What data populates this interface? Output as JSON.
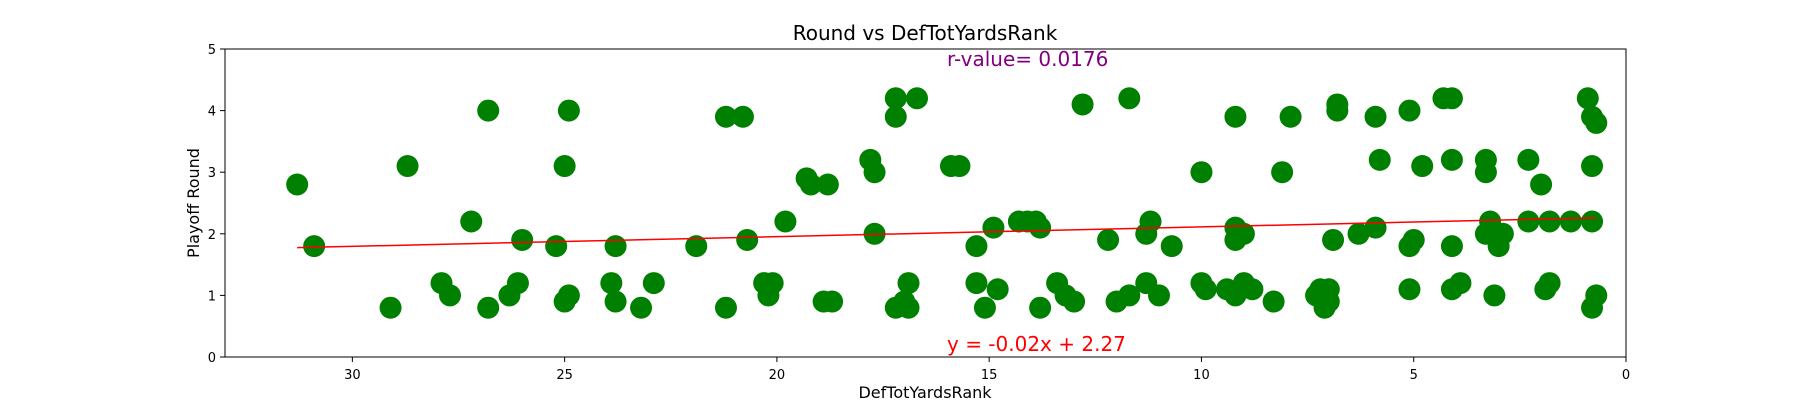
{
  "chart_data": {
    "type": "scatter",
    "title": "Round vs DefTotYardsRank",
    "xlabel": "DefTotYardsRank",
    "ylabel": "Playoff Round",
    "x_inverted": true,
    "xlim": [
      33,
      0
    ],
    "ylim": [
      0,
      5
    ],
    "xticks": [
      30,
      25,
      20,
      15,
      10,
      5,
      0
    ],
    "yticks": [
      0,
      1,
      2,
      3,
      4,
      5
    ],
    "point_color": "#008000",
    "line_color": "#ff0000",
    "grid": false,
    "annotations": {
      "r_value": {
        "text": "r-value= 0.0176",
        "color": "#800080"
      },
      "equation": {
        "text": "y = -0.02x + 2.27",
        "color": "#ff0000"
      }
    },
    "regression": {
      "slope": -0.0158,
      "intercept": 2.27,
      "x_range": [
        31.3,
        0.7
      ]
    },
    "points": [
      [
        31.3,
        2.8
      ],
      [
        30.9,
        1.8
      ],
      [
        29.1,
        0.8
      ],
      [
        28.7,
        3.1
      ],
      [
        27.9,
        1.2
      ],
      [
        27.7,
        1.0
      ],
      [
        27.2,
        2.2
      ],
      [
        26.8,
        4.0
      ],
      [
        26.8,
        0.8
      ],
      [
        26.3,
        1.0
      ],
      [
        26.1,
        1.2
      ],
      [
        26.0,
        1.9
      ],
      [
        25.2,
        1.8
      ],
      [
        25.0,
        3.1
      ],
      [
        25.0,
        0.9
      ],
      [
        24.9,
        1.0
      ],
      [
        24.9,
        4.0
      ],
      [
        23.9,
        1.2
      ],
      [
        23.8,
        1.8
      ],
      [
        23.8,
        0.9
      ],
      [
        23.2,
        0.8
      ],
      [
        22.9,
        1.2
      ],
      [
        21.9,
        1.8
      ],
      [
        21.2,
        3.9
      ],
      [
        21.2,
        0.8
      ],
      [
        20.8,
        3.9
      ],
      [
        20.7,
        1.9
      ],
      [
        20.3,
        1.2
      ],
      [
        20.2,
        1.0
      ],
      [
        20.1,
        1.2
      ],
      [
        19.8,
        2.2
      ],
      [
        19.3,
        2.9
      ],
      [
        19.2,
        2.8
      ],
      [
        18.9,
        0.9
      ],
      [
        18.8,
        2.8
      ],
      [
        18.7,
        0.9
      ],
      [
        17.8,
        3.2
      ],
      [
        17.7,
        3.0
      ],
      [
        17.7,
        2.0
      ],
      [
        17.2,
        4.2
      ],
      [
        17.2,
        3.9
      ],
      [
        17.2,
        0.8
      ],
      [
        17.0,
        0.9
      ],
      [
        16.9,
        1.2
      ],
      [
        16.9,
        0.8
      ],
      [
        16.7,
        4.2
      ],
      [
        15.9,
        3.1
      ],
      [
        15.7,
        3.1
      ],
      [
        15.3,
        1.8
      ],
      [
        15.3,
        1.2
      ],
      [
        15.1,
        0.8
      ],
      [
        14.9,
        2.1
      ],
      [
        14.8,
        1.1
      ],
      [
        14.3,
        2.2
      ],
      [
        14.1,
        2.2
      ],
      [
        13.9,
        2.2
      ],
      [
        13.8,
        2.1
      ],
      [
        13.8,
        0.8
      ],
      [
        13.4,
        1.2
      ],
      [
        13.2,
        1.0
      ],
      [
        13.0,
        0.9
      ],
      [
        12.8,
        4.1
      ],
      [
        12.2,
        1.9
      ],
      [
        12.0,
        0.9
      ],
      [
        11.7,
        4.2
      ],
      [
        11.7,
        1.0
      ],
      [
        11.3,
        2.0
      ],
      [
        11.3,
        1.2
      ],
      [
        11.2,
        2.2
      ],
      [
        11.0,
        1.0
      ],
      [
        10.7,
        1.8
      ],
      [
        10.0,
        3.0
      ],
      [
        10.0,
        1.2
      ],
      [
        9.9,
        1.1
      ],
      [
        9.4,
        1.1
      ],
      [
        9.2,
        1.0
      ],
      [
        9.2,
        1.9
      ],
      [
        9.2,
        3.9
      ],
      [
        9.2,
        2.1
      ],
      [
        9.0,
        2.0
      ],
      [
        9.0,
        1.2
      ],
      [
        8.8,
        1.1
      ],
      [
        8.3,
        0.9
      ],
      [
        8.1,
        3.0
      ],
      [
        7.9,
        3.9
      ],
      [
        7.3,
        1.0
      ],
      [
        7.2,
        1.1
      ],
      [
        7.1,
        0.8
      ],
      [
        7.0,
        1.1
      ],
      [
        7.0,
        0.9
      ],
      [
        6.9,
        1.9
      ],
      [
        6.8,
        4.1
      ],
      [
        6.8,
        4.0
      ],
      [
        6.3,
        2.0
      ],
      [
        5.9,
        2.1
      ],
      [
        5.9,
        3.9
      ],
      [
        5.8,
        3.2
      ],
      [
        5.1,
        4.0
      ],
      [
        5.1,
        1.8
      ],
      [
        5.0,
        1.9
      ],
      [
        5.1,
        1.1
      ],
      [
        4.8,
        3.1
      ],
      [
        4.3,
        4.2
      ],
      [
        4.1,
        4.2
      ],
      [
        4.1,
        3.2
      ],
      [
        4.1,
        1.8
      ],
      [
        4.1,
        1.1
      ],
      [
        3.9,
        1.2
      ],
      [
        3.3,
        3.2
      ],
      [
        3.3,
        3.0
      ],
      [
        3.3,
        2.0
      ],
      [
        3.2,
        2.2
      ],
      [
        3.1,
        1.0
      ],
      [
        3.0,
        1.8
      ],
      [
        2.9,
        2.0
      ],
      [
        2.3,
        3.2
      ],
      [
        2.3,
        2.2
      ],
      [
        2.0,
        2.8
      ],
      [
        1.9,
        1.1
      ],
      [
        1.8,
        1.2
      ],
      [
        1.8,
        2.2
      ],
      [
        1.3,
        2.2
      ],
      [
        0.9,
        4.2
      ],
      [
        0.8,
        3.9
      ],
      [
        0.8,
        2.2
      ],
      [
        0.8,
        3.1
      ],
      [
        0.8,
        0.8
      ],
      [
        0.7,
        3.8
      ],
      [
        0.7,
        1.0
      ]
    ]
  }
}
